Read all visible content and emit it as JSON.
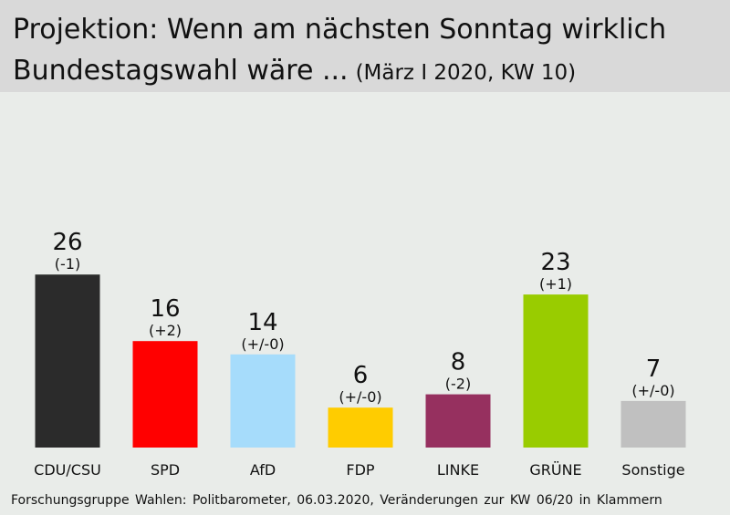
{
  "title": {
    "line1": "Projektion: Wenn am nächsten Sonntag wirklich",
    "line2": "Bundestagswahl wäre ...",
    "subtitle": "(März I 2020, KW 10)"
  },
  "source": "Forschungsgruppe Wahlen: Politbarometer, 06.03.2020, Veränderungen zur KW 06/20 in Klammern",
  "chart_data": {
    "type": "bar",
    "title": "Projektion: Wenn am nächsten Sonntag wirklich Bundestagswahl wäre ...",
    "subtitle": "(März I 2020, KW 10)",
    "categories": [
      "CDU/CSU",
      "SPD",
      "AfD",
      "FDP",
      "LINKE",
      "GRÜNE",
      "Sonstige"
    ],
    "values": [
      26,
      16,
      14,
      6,
      8,
      23,
      7
    ],
    "changes": [
      "(-1)",
      "(+2)",
      "(+/-0)",
      "(+/-0)",
      "(-2)",
      "(+1)",
      "(+/-0)"
    ],
    "colors": [
      "#2b2b2b",
      "#ff0000",
      "#a6dcfb",
      "#ffcc00",
      "#96305f",
      "#99cc00",
      "#c0c0c0"
    ],
    "xlabel": "",
    "ylabel": "",
    "grid": false,
    "legend": "none"
  }
}
